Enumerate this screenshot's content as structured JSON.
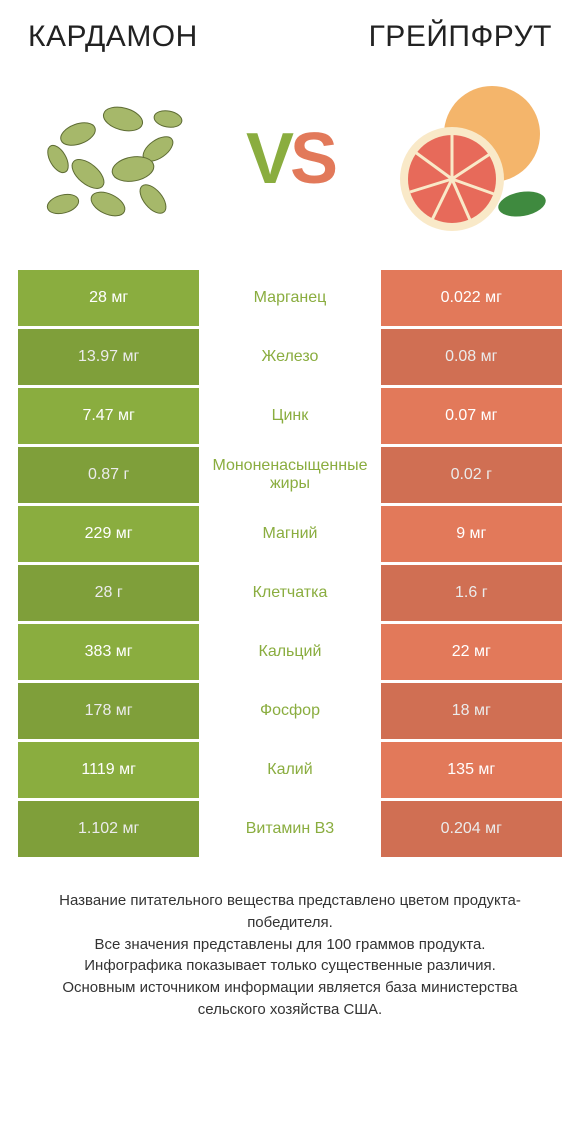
{
  "titles": {
    "left": "КАРДАМОН",
    "right": "ГРЕЙПФРУТ"
  },
  "vs": {
    "v": "V",
    "s": "S"
  },
  "colors": {
    "left_bg": "#8aad3f",
    "right_bg": "#e2795a",
    "mid_bg": "#ffffff",
    "winner_left_text": "#8aad3f",
    "winner_right_text": "#e2795a"
  },
  "rows": [
    {
      "left": "28 мг",
      "label": "Марганец",
      "right": "0.022 мг",
      "winner": "left"
    },
    {
      "left": "13.97 мг",
      "label": "Железо",
      "right": "0.08 мг",
      "winner": "left"
    },
    {
      "left": "7.47 мг",
      "label": "Цинк",
      "right": "0.07 мг",
      "winner": "left"
    },
    {
      "left": "0.87 г",
      "label": "Мононенасыщенные жиры",
      "right": "0.02 г",
      "winner": "left"
    },
    {
      "left": "229 мг",
      "label": "Магний",
      "right": "9 мг",
      "winner": "left"
    },
    {
      "left": "28 г",
      "label": "Клетчатка",
      "right": "1.6 г",
      "winner": "left"
    },
    {
      "left": "383 мг",
      "label": "Кальций",
      "right": "22 мг",
      "winner": "left"
    },
    {
      "left": "178 мг",
      "label": "Фосфор",
      "right": "18 мг",
      "winner": "left"
    },
    {
      "left": "1119 мг",
      "label": "Калий",
      "right": "135 мг",
      "winner": "left"
    },
    {
      "left": "1.102 мг",
      "label": "Витамин B3",
      "right": "0.204 мг",
      "winner": "left"
    }
  ],
  "footer": "Название питательного вещества представлено цветом продукта-победителя.\nВсе значения представлены для 100 граммов продукта.\nИнфографика показывает только существенные различия.\nОсновным источником информации является база министерства сельского хозяйства США."
}
